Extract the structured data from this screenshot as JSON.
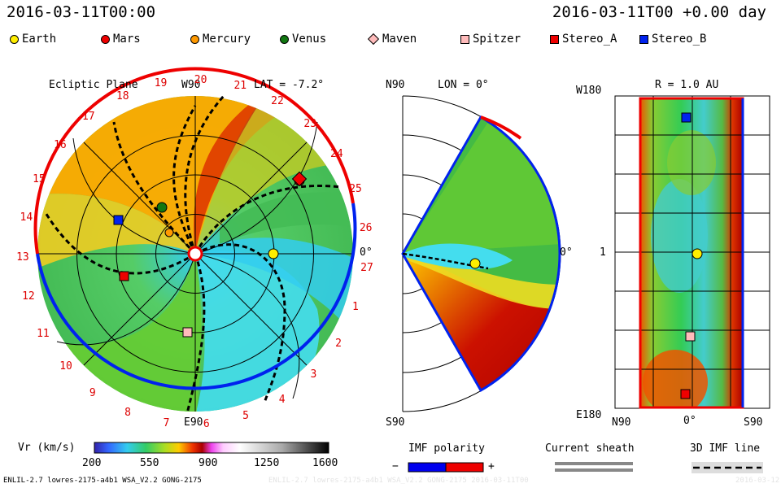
{
  "header": {
    "timestamp_left": "2016-03-11T00:00",
    "timestamp_right": "2016-03-11T00 +0.00 day"
  },
  "legend": [
    {
      "name": "Earth",
      "color": "#ffee00",
      "shape": "circle"
    },
    {
      "name": "Mars",
      "color": "#ee0000",
      "shape": "circle"
    },
    {
      "name": "Mercury",
      "color": "#ff9900",
      "shape": "circle"
    },
    {
      "name": "Venus",
      "color": "#117711",
      "shape": "circle"
    },
    {
      "name": "Maven",
      "color": "#ffbbbb",
      "shape": "diamond"
    },
    {
      "name": "Spitzer",
      "color": "#ffbbbb",
      "shape": "square"
    },
    {
      "name": "Stereo_A",
      "color": "#ee0000",
      "shape": "square"
    },
    {
      "name": "Stereo_B",
      "color": "#0022ee",
      "shape": "square"
    }
  ],
  "ecliptic": {
    "title": "Ecliptic Plane",
    "top_label": "W90",
    "bottom_label": "E90",
    "right_label": "0°",
    "lat_label": "LAT = -7.2°",
    "sector_numbers": [
      "19",
      "20",
      "21",
      "22",
      "23",
      "24",
      "25",
      "26",
      "27",
      "1",
      "2",
      "3",
      "4",
      "5",
      "6",
      "7",
      "8",
      "9",
      "10",
      "11",
      "12",
      "13",
      "14",
      "15",
      "16",
      "17",
      "18"
    ]
  },
  "meridional": {
    "top_label": "N90",
    "bottom_label": "S90",
    "lon_label": "LON = 0°",
    "right_label": "0°"
  },
  "map": {
    "title": "R = 1.0 AU",
    "top_left": "W180",
    "bottom_left": "E180",
    "left_mid": "1",
    "x_left": "N90",
    "x_mid": "0°",
    "x_right": "S90"
  },
  "colorbar": {
    "label": "Vr (km/s)",
    "ticks": [
      "200",
      "550",
      "900",
      "1250",
      "1600"
    ]
  },
  "imf_polarity": {
    "label": "IMF polarity",
    "minus": "−",
    "plus": "+",
    "neg_color": "#0000ee",
    "pos_color": "#ee0000"
  },
  "current_sheath": {
    "label": "Current sheath"
  },
  "imf_line": {
    "label": "3D IMF line"
  },
  "footer": {
    "model": "ENLIL-2.7 lowres-2175-a4b1 WSA_V2.2 GONG-2175",
    "watermark": "ENLIL-2.7 lowres-2175-a4b1 WSA_V2.2 GONG-2175 2016-03-11T00",
    "corner": "2016-03-12"
  }
}
